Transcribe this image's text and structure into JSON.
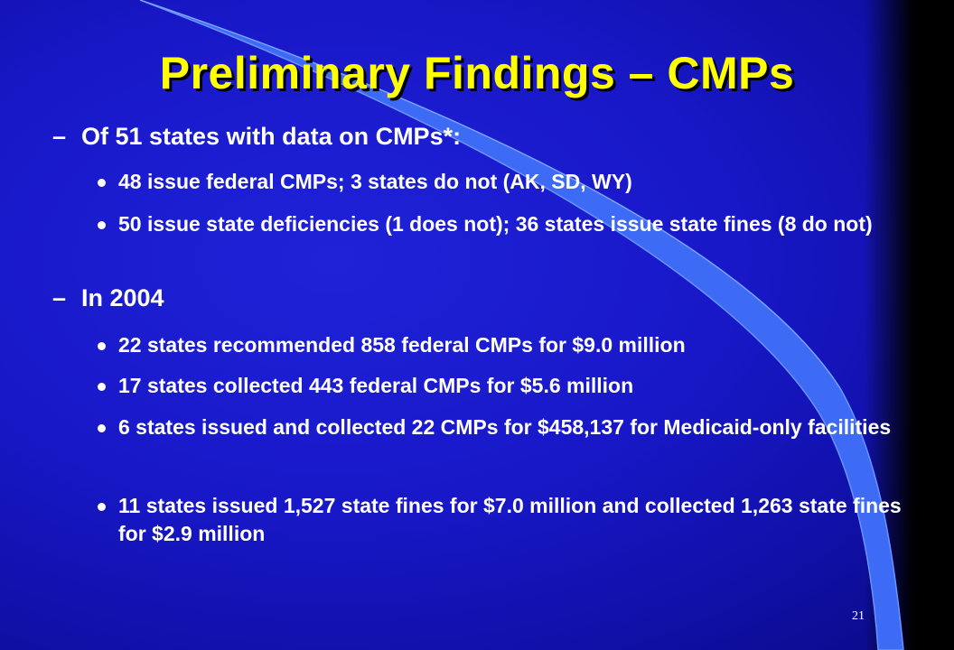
{
  "slide": {
    "title": "Preliminary Findings – CMPs",
    "dash_glyph": "–",
    "sections": [
      {
        "heading": "Of 51 states with data on CMPs*:",
        "bullets": [
          "48 issue federal CMPs; 3 states do not (AK, SD, WY)",
          "50 issue state deficiencies (1 does not); 36 states issue state fines (8 do not)"
        ]
      },
      {
        "heading": "In 2004",
        "bullets": [
          "22 states recommended 858 federal CMPs for $9.0 million",
          "17 states collected 443 federal CMPs for $5.6 million",
          "6 states issued and collected 22 CMPs for $458,137 for Medicaid-only facilities",
          "11 states issued 1,527 state fines for $7.0 million and collected 1,263 state fines for $2.9 million"
        ]
      }
    ],
    "slide_number": "21"
  },
  "colors": {
    "background": "#1818c8",
    "title": "#ffff00",
    "text": "#ffffff",
    "swoosh": "#3d6bf5"
  },
  "icons": {
    "bullet": "round-bullet-icon",
    "dash": "en-dash-glyph"
  }
}
